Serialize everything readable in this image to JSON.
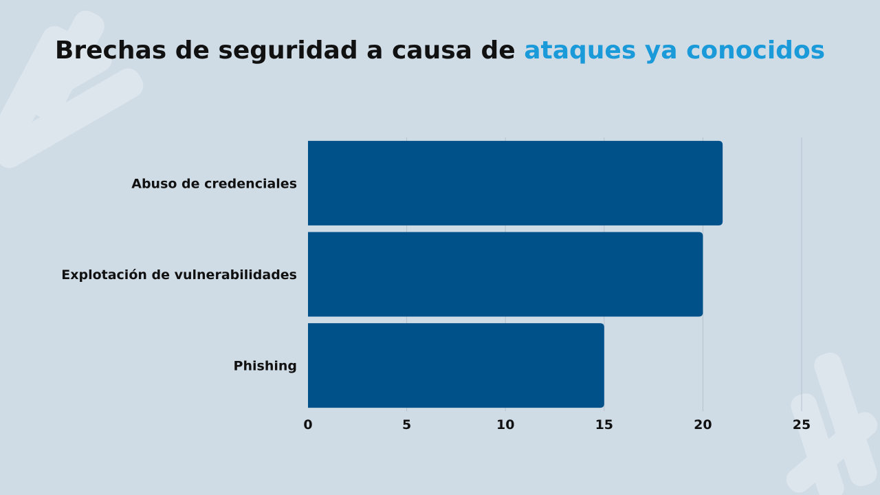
{
  "title": {
    "part1": "Brechas de seguridad a causa de",
    "part2": "ataques ya conocidos"
  },
  "colors": {
    "background": "#cfdbe5",
    "bar": "#00518a",
    "accent": "#1a9ad9",
    "grid": "#b4c2ce",
    "text": "#111111"
  },
  "chart_data": {
    "type": "bar",
    "orientation": "horizontal",
    "categories": [
      "Abuso de credenciales",
      "Explotación de vulnerabilidades",
      "Phishing"
    ],
    "values": [
      21,
      20,
      15
    ],
    "xlim": [
      0,
      25
    ],
    "xticks": [
      0,
      5,
      10,
      15,
      20,
      25
    ],
    "xlabel": "",
    "ylabel": "",
    "grid": "vertical",
    "legend": "none"
  }
}
